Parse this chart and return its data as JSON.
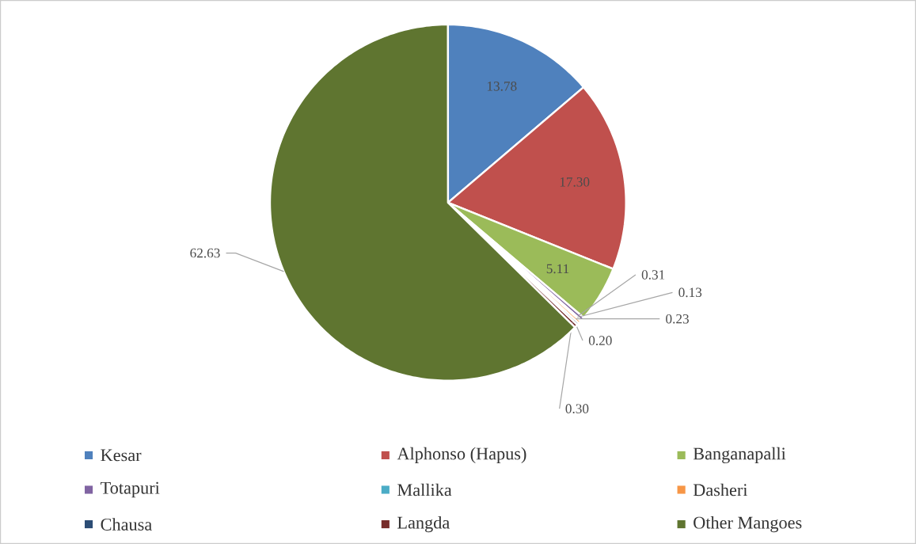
{
  "chart_data": {
    "type": "pie",
    "categories": [
      "Kesar",
      "Alphonso (Hapus)",
      "Banganapalli",
      "Totapuri",
      "Mallika",
      "Dasheri",
      "Chausa",
      "Langda",
      "Other Mangoes"
    ],
    "values": [
      13.78,
      17.3,
      5.11,
      0.31,
      0.13,
      0.23,
      0.2,
      0.3,
      62.63
    ],
    "colors": [
      "#4f81bd",
      "#c0504d",
      "#9bbb59",
      "#8064a2",
      "#4bacc6",
      "#f79646",
      "#2c4d75",
      "#772c2a",
      "#5f7530"
    ],
    "value_labels": [
      "13.78",
      "17.30",
      "5.11",
      "0.31",
      "0.13",
      "0.23",
      "0.20",
      "0.30",
      "62.63"
    ],
    "legend": "bottom"
  }
}
